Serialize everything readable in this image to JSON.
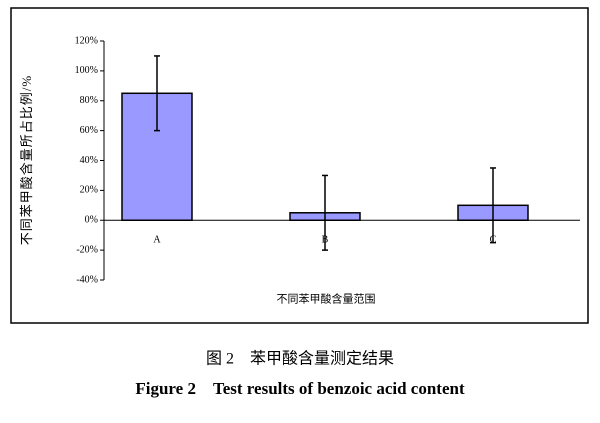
{
  "chart_data": {
    "type": "bar",
    "y_label": "不同苯甲酸含量所占比例/%",
    "x_label": "不同苯甲酸含量范围",
    "categories": [
      "A",
      "B",
      "C"
    ],
    "values": [
      85,
      5,
      10
    ],
    "errors": [
      25,
      25,
      25
    ],
    "color": "#9999ff",
    "ylim": [
      -40,
      120
    ],
    "yticks": [
      {
        "value": -40,
        "label": "-40%"
      },
      {
        "value": -20,
        "label": "-20%"
      },
      {
        "value": 0,
        "label": "0%"
      },
      {
        "value": 20,
        "label": "20%"
      },
      {
        "value": 40,
        "label": "40%"
      },
      {
        "value": 60,
        "label": "60%"
      },
      {
        "value": 80,
        "label": "80%"
      },
      {
        "value": 100,
        "label": "100%"
      },
      {
        "value": 120,
        "label": "120%"
      }
    ]
  },
  "caption": {
    "chinese": "图 2　苯甲酸含量测定结果",
    "english": "Figure 2　Test results of benzoic acid content"
  }
}
